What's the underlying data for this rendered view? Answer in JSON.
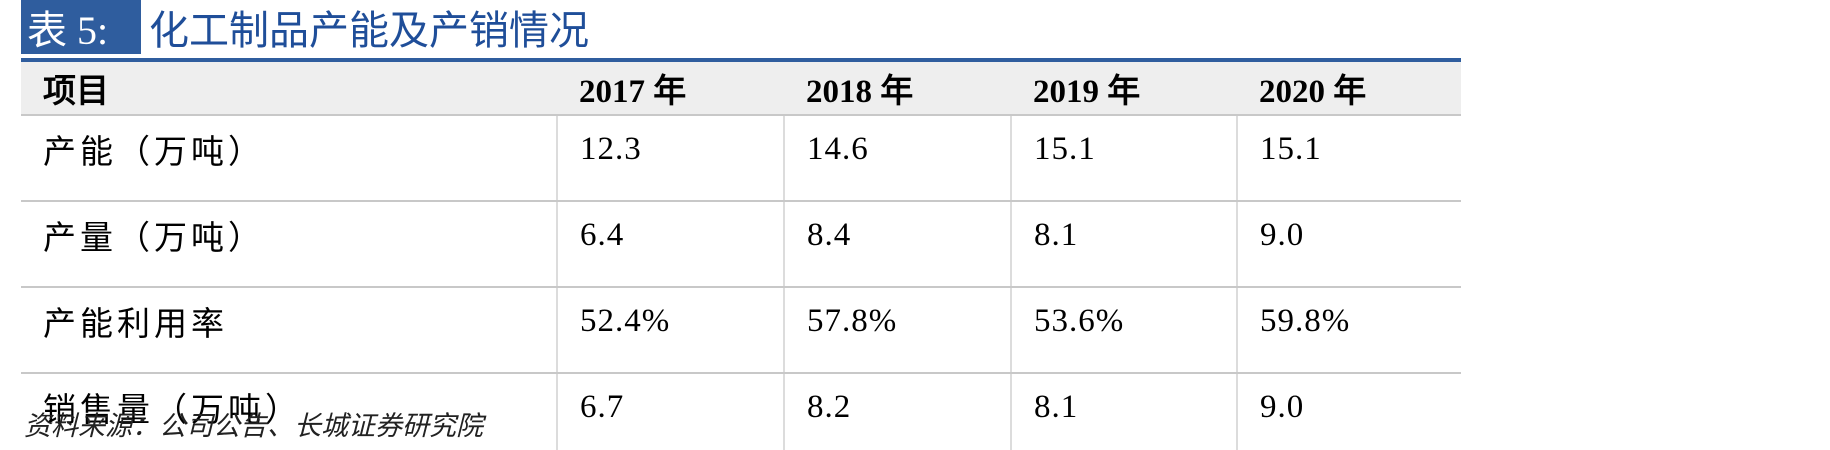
{
  "title": {
    "label": "表 5:",
    "text": "化工制品产能及产销情况"
  },
  "table": {
    "header": [
      "项目",
      "2017 年",
      "2018 年",
      "2019 年",
      "2020 年"
    ],
    "rows": [
      [
        "产能（万吨）",
        "12.3",
        "14.6",
        "15.1",
        "15.1"
      ],
      [
        "产量（万吨）",
        "6.4",
        "8.4",
        "8.1",
        "9.0"
      ],
      [
        "产能利用率",
        "52.4%",
        "57.8%",
        "53.6%",
        "59.8%"
      ],
      [
        "销售量（万吨）",
        "6.7",
        "8.2",
        "8.1",
        "9.0"
      ]
    ]
  },
  "source": "资料来源：公司公告、长城证券研究院"
}
